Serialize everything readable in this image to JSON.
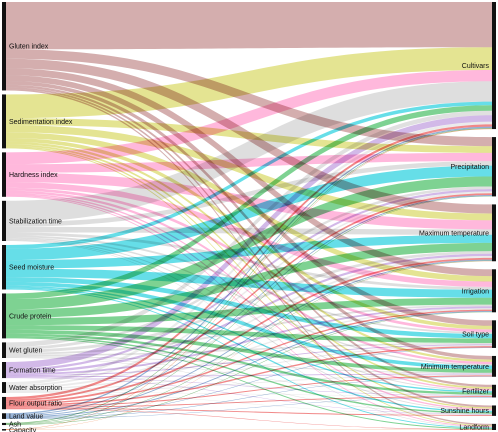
{
  "diagram": {
    "type": "sankey",
    "left_nodes": [
      {
        "id": "gluten",
        "label": "Gluten index",
        "color": "#b87878"
      },
      {
        "id": "sedimentation",
        "label": "Sedimentation index",
        "color": "#d2d24a"
      },
      {
        "id": "hardness",
        "label": "Hardness index",
        "color": "#ff88c4"
      },
      {
        "id": "stabilization",
        "label": "Stabilization time",
        "color": "#c8c8c8"
      },
      {
        "id": "seed_moisture",
        "label": "Seed moisture",
        "color": "#00c8d8"
      },
      {
        "id": "crude_protein",
        "label": "Crude protein",
        "color": "#28b44a"
      },
      {
        "id": "wet_gluten",
        "label": "Wet gluten",
        "color": "#cccccc"
      },
      {
        "id": "formation",
        "label": "Formation time",
        "color": "#b48ad8"
      },
      {
        "id": "water_absorption",
        "label": "Water absorption",
        "color": "#dddddd"
      },
      {
        "id": "flour_output",
        "label": "Flour output ratio",
        "color": "#e83838"
      },
      {
        "id": "land_value",
        "label": "Land value",
        "color": "#4a7ab8"
      },
      {
        "id": "ash",
        "label": "Ash",
        "color": "#3a9a3a"
      },
      {
        "id": "capacity",
        "label": "Capacity",
        "color": "#e86820"
      }
    ],
    "right_nodes": [
      {
        "id": "cultivars",
        "label": "Cultivars"
      },
      {
        "id": "precipitation",
        "label": "Precipitation"
      },
      {
        "id": "max_temp",
        "label": "Maximum temperature"
      },
      {
        "id": "irrigation",
        "label": "Irrigation"
      },
      {
        "id": "soil_type",
        "label": "Soil type"
      },
      {
        "id": "min_temp",
        "label": "Minimum temperature"
      },
      {
        "id": "fertilizer",
        "label": "Fertilizer"
      },
      {
        "id": "sunshine",
        "label": "Sunshine hours"
      },
      {
        "id": "landform",
        "label": "Landform"
      }
    ],
    "links": [
      {
        "source": "gluten",
        "target": "cultivars",
        "value": 10
      },
      {
        "source": "gluten",
        "target": "precipitation",
        "value": 2
      },
      {
        "source": "gluten",
        "target": "max_temp",
        "value": 2
      },
      {
        "source": "gluten",
        "target": "irrigation",
        "value": 1.5
      },
      {
        "source": "gluten",
        "target": "soil_type",
        "value": 1.2
      },
      {
        "source": "gluten",
        "target": "min_temp",
        "value": 0.8
      },
      {
        "source": "gluten",
        "target": "fertilizer",
        "value": 0.5
      },
      {
        "source": "gluten",
        "target": "sunshine",
        "value": 0.4
      },
      {
        "source": "gluten",
        "target": "landform",
        "value": 0.3
      },
      {
        "source": "sedimentation",
        "target": "cultivars",
        "value": 5
      },
      {
        "source": "sedimentation",
        "target": "precipitation",
        "value": 1.5
      },
      {
        "source": "sedimentation",
        "target": "max_temp",
        "value": 1.5
      },
      {
        "source": "sedimentation",
        "target": "irrigation",
        "value": 1.2
      },
      {
        "source": "sedimentation",
        "target": "soil_type",
        "value": 0.8
      },
      {
        "source": "sedimentation",
        "target": "min_temp",
        "value": 0.5
      },
      {
        "source": "sedimentation",
        "target": "fertilizer",
        "value": 0.4
      },
      {
        "source": "sedimentation",
        "target": "sunshine",
        "value": 0.3
      },
      {
        "source": "sedimentation",
        "target": "landform",
        "value": 0.2
      },
      {
        "source": "hardness",
        "target": "cultivars",
        "value": 2.5
      },
      {
        "source": "hardness",
        "target": "precipitation",
        "value": 1.8
      },
      {
        "source": "hardness",
        "target": "max_temp",
        "value": 2
      },
      {
        "source": "hardness",
        "target": "irrigation",
        "value": 1.2
      },
      {
        "source": "hardness",
        "target": "soil_type",
        "value": 0.6
      },
      {
        "source": "hardness",
        "target": "min_temp",
        "value": 0.5
      },
      {
        "source": "hardness",
        "target": "fertilizer",
        "value": 0.3
      },
      {
        "source": "hardness",
        "target": "sunshine",
        "value": 0.3
      },
      {
        "source": "hardness",
        "target": "landform",
        "value": 0.2
      },
      {
        "source": "stabilization",
        "target": "cultivars",
        "value": 4.5
      },
      {
        "source": "stabilization",
        "target": "precipitation",
        "value": 1
      },
      {
        "source": "stabilization",
        "target": "max_temp",
        "value": 1.2
      },
      {
        "source": "stabilization",
        "target": "irrigation",
        "value": 0.6
      },
      {
        "source": "stabilization",
        "target": "soil_type",
        "value": 0.4
      },
      {
        "source": "stabilization",
        "target": "min_temp",
        "value": 0.3
      },
      {
        "source": "stabilization",
        "target": "fertilizer",
        "value": 0.2
      },
      {
        "source": "stabilization",
        "target": "sunshine",
        "value": 0.2
      },
      {
        "source": "stabilization",
        "target": "landform",
        "value": 0.1
      },
      {
        "source": "seed_moisture",
        "target": "cultivars",
        "value": 0.8
      },
      {
        "source": "seed_moisture",
        "target": "precipitation",
        "value": 2.4
      },
      {
        "source": "seed_moisture",
        "target": "max_temp",
        "value": 1.8
      },
      {
        "source": "seed_moisture",
        "target": "irrigation",
        "value": 1.8
      },
      {
        "source": "seed_moisture",
        "target": "soil_type",
        "value": 1
      },
      {
        "source": "seed_moisture",
        "target": "min_temp",
        "value": 0.8
      },
      {
        "source": "seed_moisture",
        "target": "fertilizer",
        "value": 0.3
      },
      {
        "source": "seed_moisture",
        "target": "sunshine",
        "value": 0.3
      },
      {
        "source": "seed_moisture",
        "target": "landform",
        "value": 0.2
      },
      {
        "source": "crude_protein",
        "target": "cultivars",
        "value": 1.2
      },
      {
        "source": "crude_protein",
        "target": "precipitation",
        "value": 2.2
      },
      {
        "source": "crude_protein",
        "target": "max_temp",
        "value": 1.8
      },
      {
        "source": "crude_protein",
        "target": "irrigation",
        "value": 1.5
      },
      {
        "source": "crude_protein",
        "target": "soil_type",
        "value": 1
      },
      {
        "source": "crude_protein",
        "target": "min_temp",
        "value": 0.8
      },
      {
        "source": "crude_protein",
        "target": "fertilizer",
        "value": 0.5
      },
      {
        "source": "crude_protein",
        "target": "sunshine",
        "value": 0.3
      },
      {
        "source": "crude_protein",
        "target": "landform",
        "value": 0.2
      },
      {
        "source": "wet_gluten",
        "target": "cultivars",
        "value": 1
      },
      {
        "source": "wet_gluten",
        "target": "precipitation",
        "value": 0.6
      },
      {
        "source": "wet_gluten",
        "target": "max_temp",
        "value": 0.6
      },
      {
        "source": "wet_gluten",
        "target": "irrigation",
        "value": 0.4
      },
      {
        "source": "wet_gluten",
        "target": "soil_type",
        "value": 0.3
      },
      {
        "source": "wet_gluten",
        "target": "min_temp",
        "value": 0.2
      },
      {
        "source": "wet_gluten",
        "target": "fertilizer",
        "value": 0.1
      },
      {
        "source": "wet_gluten",
        "target": "sunshine",
        "value": 0.1
      },
      {
        "source": "formation",
        "target": "cultivars",
        "value": 1.4
      },
      {
        "source": "formation",
        "target": "precipitation",
        "value": 0.5
      },
      {
        "source": "formation",
        "target": "max_temp",
        "value": 0.5
      },
      {
        "source": "formation",
        "target": "irrigation",
        "value": 0.4
      },
      {
        "source": "formation",
        "target": "soil_type",
        "value": 0.2
      },
      {
        "source": "formation",
        "target": "min_temp",
        "value": 0.2
      },
      {
        "source": "formation",
        "target": "fertilizer",
        "value": 0.1
      },
      {
        "source": "formation",
        "target": "sunshine",
        "value": 0.1
      },
      {
        "source": "water_absorption",
        "target": "cultivars",
        "value": 0.6
      },
      {
        "source": "water_absorption",
        "target": "precipitation",
        "value": 0.4
      },
      {
        "source": "water_absorption",
        "target": "max_temp",
        "value": 0.4
      },
      {
        "source": "water_absorption",
        "target": "irrigation",
        "value": 0.3
      },
      {
        "source": "water_absorption",
        "target": "soil_type",
        "value": 0.2
      },
      {
        "source": "water_absorption",
        "target": "min_temp",
        "value": 0.2
      },
      {
        "source": "water_absorption",
        "target": "fertilizer",
        "value": 0.1
      },
      {
        "source": "water_absorption",
        "target": "sunshine",
        "value": 0.1
      },
      {
        "source": "flour_output",
        "target": "cultivars",
        "value": 0.5
      },
      {
        "source": "flour_output",
        "target": "precipitation",
        "value": 0.4
      },
      {
        "source": "flour_output",
        "target": "max_temp",
        "value": 0.4
      },
      {
        "source": "flour_output",
        "target": "irrigation",
        "value": 0.3
      },
      {
        "source": "flour_output",
        "target": "soil_type",
        "value": 0.3
      },
      {
        "source": "flour_output",
        "target": "min_temp",
        "value": 0.2
      },
      {
        "source": "flour_output",
        "target": "fertilizer",
        "value": 0.2
      },
      {
        "source": "flour_output",
        "target": "sunshine",
        "value": 0.2
      },
      {
        "source": "flour_output",
        "target": "landform",
        "value": 0.1
      },
      {
        "source": "land_value",
        "target": "cultivars",
        "value": 0.3
      },
      {
        "source": "land_value",
        "target": "precipitation",
        "value": 0.2
      },
      {
        "source": "land_value",
        "target": "max_temp",
        "value": 0.2
      },
      {
        "source": "land_value",
        "target": "irrigation",
        "value": 0.2
      },
      {
        "source": "land_value",
        "target": "soil_type",
        "value": 0.1
      },
      {
        "source": "land_value",
        "target": "min_temp",
        "value": 0.1
      },
      {
        "source": "land_value",
        "target": "fertilizer",
        "value": 0.1
      },
      {
        "source": "ash",
        "target": "cultivars",
        "value": 0.15
      },
      {
        "source": "ash",
        "target": "precipitation",
        "value": 0.1
      },
      {
        "source": "ash",
        "target": "max_temp",
        "value": 0.1
      },
      {
        "source": "ash",
        "target": "irrigation",
        "value": 0.1
      },
      {
        "source": "capacity",
        "target": "cultivars",
        "value": 0.1
      },
      {
        "source": "capacity",
        "target": "max_temp",
        "value": 0.05
      },
      {
        "source": "capacity",
        "target": "landform",
        "value": 0.05
      }
    ]
  }
}
